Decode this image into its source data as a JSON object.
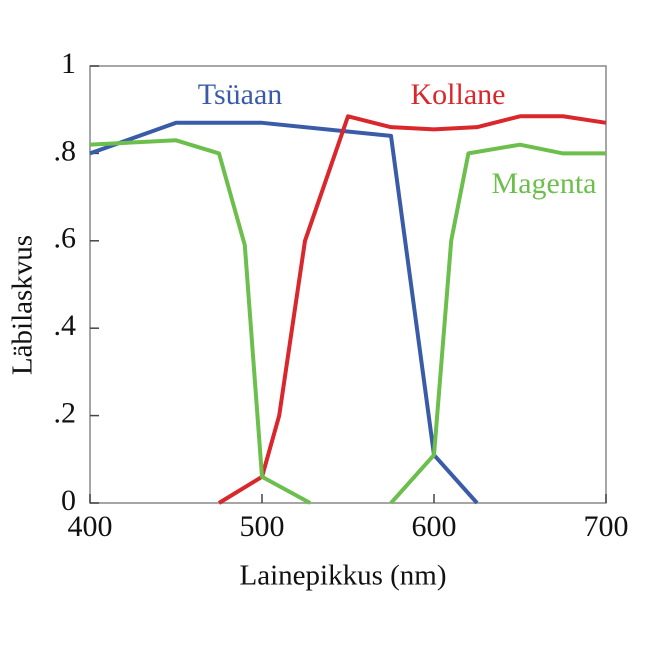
{
  "chart_data": {
    "type": "line",
    "xlabel": "Lainepikkus (nm)",
    "ylabel": "Läbilaskvus",
    "xlim": [
      400,
      700
    ],
    "xticks": [
      400,
      500,
      600,
      700
    ],
    "ylim": [
      0,
      1
    ],
    "yticks": [
      {
        "value": 0,
        "label": "0"
      },
      {
        "value": 0.2,
        "label": ".2"
      },
      {
        "value": 0.4,
        "label": ".4"
      },
      {
        "value": 0.6,
        "label": ".6"
      },
      {
        "value": 0.8,
        "label": ".8"
      },
      {
        "value": 1,
        "label": "1"
      }
    ],
    "series": [
      {
        "name": "Tsüaan",
        "color": "#3a5ca8",
        "x": [
          400,
          450,
          500,
          575,
          600,
          625
        ],
        "values": [
          0.8,
          0.87,
          0.87,
          0.84,
          0.11,
          0.0
        ]
      },
      {
        "name": "Kollane",
        "color": "#d9272c",
        "x": [
          475,
          500,
          510,
          525,
          550,
          575,
          600,
          625,
          650,
          675,
          700
        ],
        "values": [
          0.0,
          0.06,
          0.2,
          0.6,
          0.885,
          0.86,
          0.855,
          0.86,
          0.885,
          0.885,
          0.87
        ]
      },
      {
        "name": "Magenta",
        "color": "#6cbf4c",
        "x": [
          400,
          450,
          475,
          490,
          500,
          528,
          550,
          575,
          600,
          610,
          620,
          650,
          675,
          700
        ],
        "values": [
          0.82,
          0.83,
          0.8,
          0.59,
          0.06,
          0.0,
          null,
          0.0,
          0.11,
          0.6,
          0.8,
          0.82,
          0.8,
          0.8
        ]
      }
    ]
  }
}
